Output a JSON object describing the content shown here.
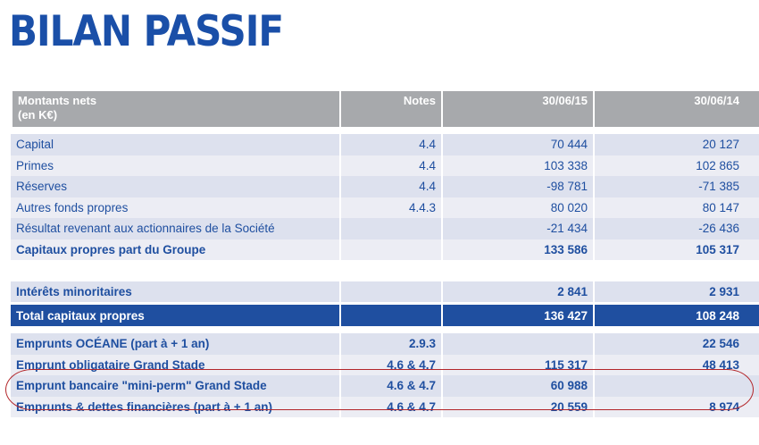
{
  "title": "BILAN PASSIF",
  "header": {
    "label_line1": "Montants nets",
    "label_line2": "(en K€)",
    "notes": "Notes",
    "year1": "30/06/15",
    "year2": "30/06/14"
  },
  "rows": [
    {
      "label": "Capital",
      "notes": "4.4",
      "y1": "70 444",
      "y2": "20 127"
    },
    {
      "label": "Primes",
      "notes": "4.4",
      "y1": "103 338",
      "y2": "102 865"
    },
    {
      "label": "Réserves",
      "notes": "4.4",
      "y1": "-98 781",
      "y2": "-71 385"
    },
    {
      "label": "Autres fonds propres",
      "notes": "4.4.3",
      "y1": "80 020",
      "y2": "80 147"
    },
    {
      "label": "Résultat revenant aux actionnaires de la Société",
      "notes": "",
      "y1": "-21 434",
      "y2": "-26 436"
    },
    {
      "label": "Capitaux propres part du Groupe",
      "notes": "",
      "y1": "133 586",
      "y2": "105 317"
    },
    {
      "label": "",
      "notes": "",
      "y1": "",
      "y2": ""
    },
    {
      "label": "Intérêts minoritaires",
      "notes": "",
      "y1": "2 841",
      "y2": "2 931"
    },
    {
      "label": "Total capitaux propres",
      "notes": "",
      "y1": "136 427",
      "y2": "108 248"
    },
    {
      "label": "Emprunts OCÉANE (part à + 1 an)",
      "notes": "2.9.3",
      "y1": "",
      "y2": "22 546"
    },
    {
      "label": "Emprunt obligataire Grand Stade",
      "notes": "4.6 & 4.7",
      "y1": "115 317",
      "y2": "48 413"
    },
    {
      "label": "Emprunt bancaire \"mini-perm\" Grand Stade",
      "notes": "4.6 & 4.7",
      "y1": "60 988",
      "y2": ""
    },
    {
      "label": "Emprunts & dettes financières (part à + 1 an)",
      "notes": "4.6 & 4.7",
      "y1": "20 559",
      "y2": "8 974"
    }
  ]
}
